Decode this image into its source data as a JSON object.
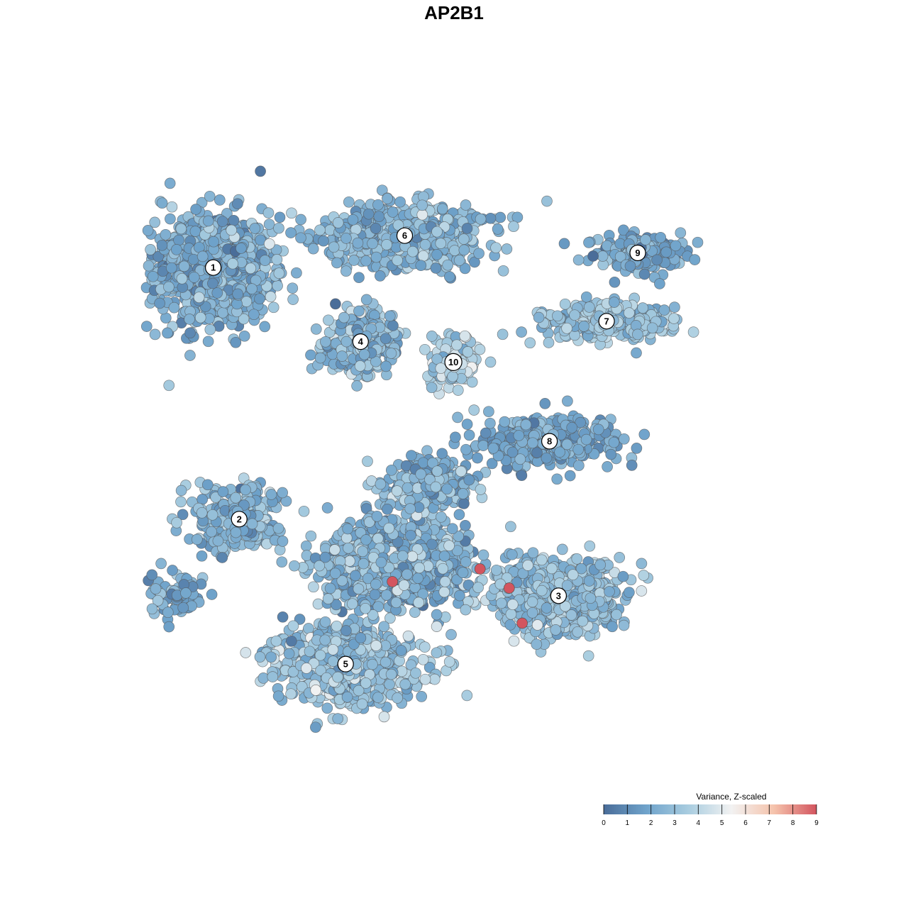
{
  "chart_data": {
    "type": "scatter",
    "title": "AP2B1",
    "xlabel": "",
    "ylabel": "",
    "grid": false,
    "axes_visible": false,
    "xlim": [
      0,
      100
    ],
    "ylim": [
      0,
      100
    ],
    "color_scale": {
      "title": "Variance, Z-scaled",
      "min": 0,
      "max": 9,
      "ticks": [
        0,
        1,
        2,
        3,
        4,
        5,
        6,
        7,
        8,
        9
      ],
      "colors": [
        "#4a6d99",
        "#6fa3cb",
        "#a9cde0",
        "#f2f2f2",
        "#f5c3ac",
        "#d3555f"
      ],
      "placement": "bottom-right"
    },
    "clusters": [
      {
        "label": "1",
        "x": 9.9,
        "y": 79.2,
        "sx": 8.0,
        "sy": 8.0,
        "mean": 2.3,
        "spread": 0.8,
        "n": 900
      },
      {
        "label": "6",
        "x": 39.4,
        "y": 84.2,
        "sx": 11.0,
        "sy": 4.5,
        "mean": 2.6,
        "spread": 0.8,
        "n": 650
      },
      {
        "label": "4",
        "x": 32.6,
        "y": 67.6,
        "sx": 4.5,
        "sy": 4.5,
        "mean": 2.5,
        "spread": 0.9,
        "n": 380
      },
      {
        "label": "10",
        "x": 46.9,
        "y": 64.4,
        "sx": 3.5,
        "sy": 4.0,
        "mean": 3.9,
        "spread": 0.8,
        "n": 130
      },
      {
        "label": "9",
        "x": 75.3,
        "y": 81.5,
        "sx": 6.0,
        "sy": 2.5,
        "mean": 2.0,
        "spread": 0.7,
        "n": 200
      },
      {
        "label": "7",
        "x": 70.5,
        "y": 70.8,
        "sx": 9.0,
        "sy": 2.5,
        "mean": 3.1,
        "spread": 0.7,
        "n": 320
      },
      {
        "label": "8",
        "x": 61.7,
        "y": 52.0,
        "sx": 9.0,
        "sy": 3.5,
        "mean": 2.0,
        "spread": 0.7,
        "n": 360
      },
      {
        "label": "2",
        "x": 13.9,
        "y": 39.8,
        "sx": 6.0,
        "sy": 4.5,
        "mean": 2.4,
        "spread": 0.8,
        "n": 300
      },
      {
        "label": "3",
        "x": 63.1,
        "y": 27.8,
        "sx": 8.5,
        "sy": 5.0,
        "mean": 2.9,
        "spread": 0.8,
        "n": 850
      },
      {
        "label": "5",
        "x": 30.3,
        "y": 17.1,
        "sx": 9.0,
        "sy": 5.5,
        "mean": 3.0,
        "spread": 0.9,
        "n": 900
      }
    ],
    "extra_regions": [
      {
        "x": 38.0,
        "y": 33.0,
        "sx": 10.0,
        "sy": 6.0,
        "mean": 2.6,
        "spread": 0.9,
        "n": 1000
      },
      {
        "x": 43.0,
        "y": 45.0,
        "sx": 6.0,
        "sy": 3.5,
        "mean": 2.6,
        "spread": 0.9,
        "n": 300
      },
      {
        "x": 4.0,
        "y": 28.0,
        "sx": 4.0,
        "sy": 3.0,
        "mean": 2.0,
        "spread": 0.8,
        "n": 80
      }
    ],
    "high_points": [
      {
        "x": 37.5,
        "y": 30.0,
        "value": 9
      },
      {
        "x": 51.0,
        "y": 32.0,
        "value": 9
      },
      {
        "x": 55.5,
        "y": 29.0,
        "value": 9
      },
      {
        "x": 57.5,
        "y": 23.5,
        "value": 9
      }
    ]
  }
}
